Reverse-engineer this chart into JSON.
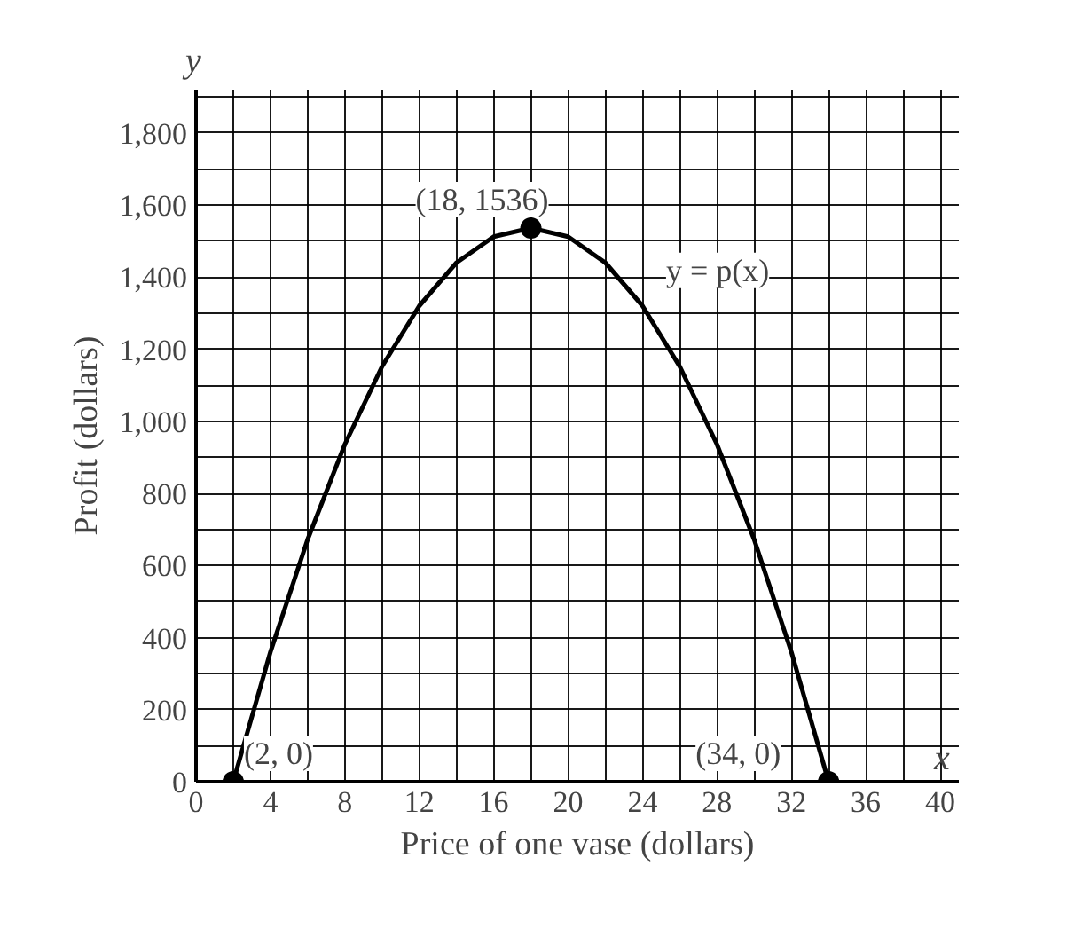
{
  "chart_data": {
    "type": "line",
    "xlabel": "Price of one vase (dollars)",
    "ylabel": "Profit (dollars)",
    "xlim": [
      0,
      41
    ],
    "ylim": [
      0,
      1920
    ],
    "xticks": [
      0,
      {
        "value": 2,
        "label": null
      },
      4,
      {
        "value": 6,
        "label": null
      },
      8,
      {
        "value": 10,
        "label": null
      },
      12,
      {
        "value": 14,
        "label": null
      },
      16,
      {
        "value": 18,
        "label": null
      },
      20,
      {
        "value": 22,
        "label": null
      },
      24,
      {
        "value": 26,
        "label": null
      },
      28,
      {
        "value": 30,
        "label": null
      },
      32,
      {
        "value": 34,
        "label": null
      },
      36,
      {
        "value": 38,
        "label": null
      },
      40
    ],
    "yticks": [
      {
        "value": 0,
        "label": "0"
      },
      {
        "value": 100,
        "label": null
      },
      {
        "value": 200,
        "label": "200"
      },
      {
        "value": 300,
        "label": null
      },
      {
        "value": 400,
        "label": "400"
      },
      {
        "value": 500,
        "label": null
      },
      {
        "value": 600,
        "label": "600"
      },
      {
        "value": 700,
        "label": null
      },
      {
        "value": 800,
        "label": "800"
      },
      {
        "value": 900,
        "label": null
      },
      {
        "value": 1000,
        "label": "1,000"
      },
      {
        "value": 1100,
        "label": null
      },
      {
        "value": 1200,
        "label": "1,200"
      },
      {
        "value": 1300,
        "label": null
      },
      {
        "value": 1400,
        "label": "1,400"
      },
      {
        "value": 1500,
        "label": null
      },
      {
        "value": 1600,
        "label": "1,600"
      },
      {
        "value": 1700,
        "label": null
      },
      {
        "value": 1800,
        "label": "1,800"
      },
      {
        "value": 1900,
        "label": null
      }
    ],
    "grid": true,
    "series": [
      {
        "color": "#000000",
        "x": [
          2,
          4,
          6,
          8,
          10,
          12,
          14,
          16,
          18,
          20,
          22,
          24,
          26,
          28,
          30,
          32,
          34
        ],
        "values": [
          0,
          360,
          672,
          936,
          1152,
          1320,
          1440,
          1512,
          1536,
          1512,
          1440,
          1320,
          1152,
          936,
          672,
          360,
          0
        ]
      },
      {
        "type": "scatter",
        "color": "#000000",
        "marker": "circle",
        "x": [
          2,
          18,
          34
        ],
        "values": [
          0,
          1536,
          0
        ]
      }
    ],
    "annotations": [
      "x",
      "y",
      {
        "text": "(18, 1536)",
        "x": 18,
        "y": 1536
      },
      {
        "text": "(2, 0)",
        "x": 2,
        "y": 0
      },
      {
        "text": "(34, 0)",
        "x": 34,
        "y": 0
      },
      {
        "text": "y = p(x)",
        "x": 24.5,
        "y": 1330
      }
    ]
  }
}
